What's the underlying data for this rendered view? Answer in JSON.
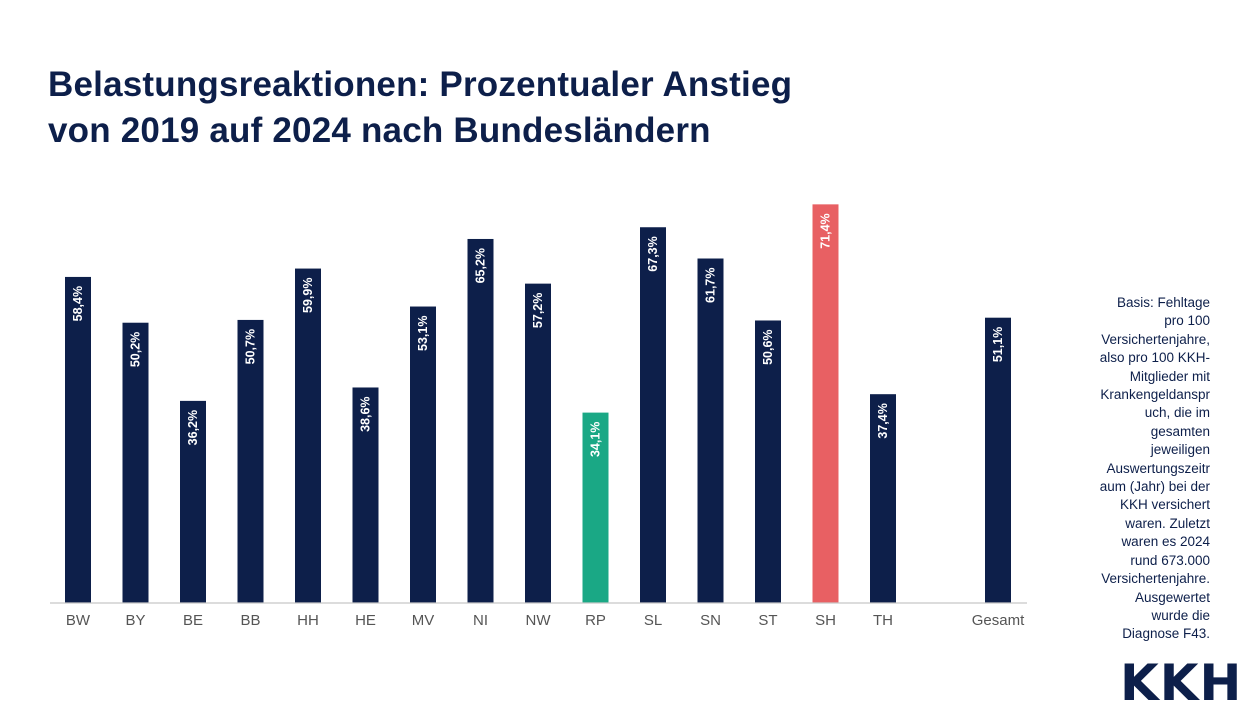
{
  "title_line1": "Belastungsreaktionen: Prozentualer Anstieg",
  "title_line2": "von 2019 auf 2024 nach Bundesländern",
  "note": "Basis: Fehltage\npro 100\nVersichertenjahre,\nalso pro 100 KKH-\nMitglieder mit\nKrankengeldanspr\nuch, die im\ngesamten\njeweiligen\nAuswertungszeitr\naum (Jahr) bei der\nKKH versichert\nwaren. Zuletzt\nwaren es 2024\nrund 673.000\nVersichertenjahre.\nAusgewertet\nwurde die\nDiagnose F43.",
  "logo": "KKH",
  "colors": {
    "default": "#0d1f4a",
    "min": "#1aa885",
    "max": "#e86063",
    "axis": "#c8c8c8",
    "tick_label": "#555555",
    "value_label": "#ffffff"
  },
  "chart_data": {
    "type": "bar",
    "categories": [
      "BW",
      "BY",
      "BE",
      "BB",
      "HH",
      "HE",
      "MV",
      "NI",
      "NW",
      "RP",
      "SL",
      "SN",
      "ST",
      "SH",
      "TH",
      "",
      "Gesamt"
    ],
    "values": [
      58.4,
      50.2,
      36.2,
      50.7,
      59.9,
      38.6,
      53.1,
      65.2,
      57.2,
      34.1,
      67.3,
      61.7,
      50.6,
      71.4,
      37.4,
      null,
      51.1
    ],
    "labels": [
      "58,4%",
      "50,2%",
      "36,2%",
      "50,7%",
      "59,9%",
      "38,6%",
      "53,1%",
      "65,2%",
      "57,2%",
      "34,1%",
      "67,3%",
      "61,7%",
      "50,6%",
      "71,4%",
      "37,4%",
      "",
      "51,1%"
    ],
    "highlight": {
      "RP": "min",
      "SH": "max"
    },
    "ylim": [
      0,
      72
    ],
    "grid": false,
    "legend": "none"
  }
}
